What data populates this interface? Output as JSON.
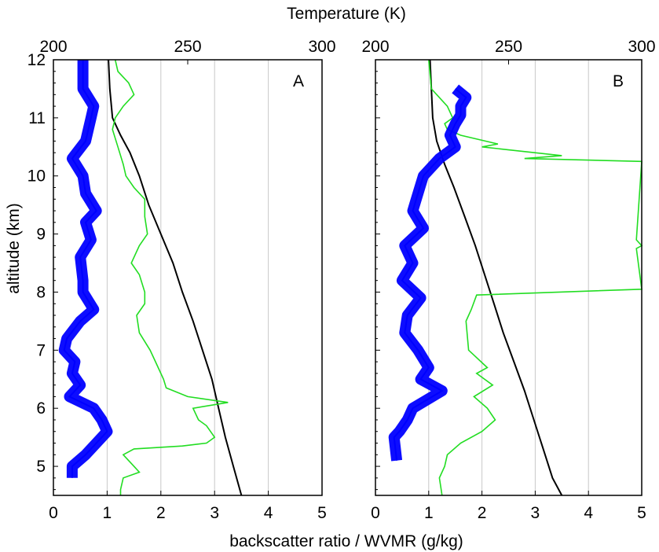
{
  "figure": {
    "top_axis_label": "Temperature (K)",
    "bottom_axis_label": "backscatter ratio / WVMR (g/kg)",
    "y_axis_label": "altitude (km)"
  },
  "chart_data": [
    {
      "type": "line",
      "panel": "A",
      "panel_label": "A",
      "xlim": [
        0,
        5
      ],
      "x2lim": [
        200,
        300
      ],
      "ylim": [
        4.5,
        12
      ],
      "xticks": [
        "0",
        "1",
        "2",
        "3",
        "4",
        "5"
      ],
      "x2ticks": [
        "200",
        "250",
        "300"
      ],
      "yticks": [
        "5",
        "6",
        "7",
        "8",
        "9",
        "10",
        "11",
        "12"
      ],
      "grid": "vertical",
      "series": [
        {
          "kind": "temperature",
          "axis": "top",
          "color": "#000000",
          "points": [
            [
              220.5,
              12.0
            ],
            [
              221.0,
              11.5
            ],
            [
              222.0,
              11.0
            ],
            [
              225.0,
              10.7
            ],
            [
              228.5,
              10.4
            ],
            [
              232.0,
              10.0
            ],
            [
              235.5,
              9.5
            ],
            [
              240.0,
              9.0
            ],
            [
              244.5,
              8.5
            ],
            [
              248.0,
              8.0
            ],
            [
              252.0,
              7.5
            ],
            [
              255.5,
              7.0
            ],
            [
              259.0,
              6.5
            ],
            [
              261.5,
              6.0
            ],
            [
              264.0,
              5.5
            ],
            [
              267.0,
              5.0
            ],
            [
              270.0,
              4.5
            ]
          ]
        },
        {
          "kind": "wvmr",
          "axis": "bottom",
          "color": "#22dd22",
          "points": [
            [
              1.15,
              12.0
            ],
            [
              1.2,
              11.8
            ],
            [
              1.4,
              11.6
            ],
            [
              1.5,
              11.4
            ],
            [
              1.3,
              11.2
            ],
            [
              1.15,
              11.0
            ],
            [
              1.1,
              10.8
            ],
            [
              1.2,
              10.5
            ],
            [
              1.3,
              10.2
            ],
            [
              1.35,
              10.0
            ],
            [
              1.5,
              9.8
            ],
            [
              1.7,
              9.6
            ],
            [
              1.7,
              9.3
            ],
            [
              1.75,
              9.0
            ],
            [
              1.6,
              8.8
            ],
            [
              1.45,
              8.5
            ],
            [
              1.6,
              8.3
            ],
            [
              1.7,
              8.0
            ],
            [
              1.7,
              7.8
            ],
            [
              1.55,
              7.6
            ],
            [
              1.6,
              7.3
            ],
            [
              1.8,
              7.0
            ],
            [
              1.9,
              6.8
            ],
            [
              2.05,
              6.5
            ],
            [
              2.1,
              6.35
            ],
            [
              2.5,
              6.2
            ],
            [
              3.25,
              6.1
            ],
            [
              2.6,
              6.0
            ],
            [
              2.7,
              5.8
            ],
            [
              2.85,
              5.7
            ],
            [
              3.0,
              5.5
            ],
            [
              2.85,
              5.4
            ],
            [
              2.4,
              5.35
            ],
            [
              1.5,
              5.3
            ],
            [
              1.3,
              5.2
            ],
            [
              1.5,
              5.0
            ],
            [
              1.6,
              4.9
            ],
            [
              1.3,
              4.8
            ],
            [
              1.25,
              4.6
            ],
            [
              1.25,
              4.5
            ]
          ]
        },
        {
          "kind": "backscatter",
          "axis": "bottom",
          "color": "#0000ff",
          "points": [
            [
              0.55,
              12.0
            ],
            [
              0.55,
              11.5
            ],
            [
              0.75,
              11.2
            ],
            [
              0.7,
              11.0
            ],
            [
              0.6,
              10.6
            ],
            [
              0.35,
              10.3
            ],
            [
              0.55,
              10.0
            ],
            [
              0.6,
              9.7
            ],
            [
              0.8,
              9.4
            ],
            [
              0.6,
              9.2
            ],
            [
              0.7,
              8.9
            ],
            [
              0.5,
              8.6
            ],
            [
              0.55,
              8.2
            ],
            [
              0.55,
              8.0
            ],
            [
              0.75,
              7.7
            ],
            [
              0.5,
              7.5
            ],
            [
              0.25,
              7.2
            ],
            [
              0.2,
              7.0
            ],
            [
              0.4,
              6.8
            ],
            [
              0.35,
              6.6
            ],
            [
              0.5,
              6.4
            ],
            [
              0.3,
              6.2
            ],
            [
              0.75,
              6.0
            ],
            [
              0.9,
              5.8
            ],
            [
              1.0,
              5.6
            ],
            [
              0.8,
              5.4
            ],
            [
              0.6,
              5.2
            ],
            [
              0.35,
              5.0
            ],
            [
              0.35,
              4.8
            ]
          ]
        }
      ]
    },
    {
      "type": "line",
      "panel": "B",
      "panel_label": "B",
      "xlim": [
        0,
        5
      ],
      "x2lim": [
        200,
        300
      ],
      "ylim": [
        4.5,
        12
      ],
      "xticks": [
        "0",
        "1",
        "2",
        "3",
        "4",
        "5"
      ],
      "x2ticks": [
        "200",
        "250",
        "300"
      ],
      "yticks": [],
      "grid": "vertical",
      "series": [
        {
          "kind": "temperature",
          "axis": "top",
          "color": "#000000",
          "points": [
            [
              220.5,
              12.0
            ],
            [
              221.0,
              11.5
            ],
            [
              221.5,
              11.0
            ],
            [
              223.0,
              10.6
            ],
            [
              226.0,
              10.2
            ],
            [
              229.5,
              9.8
            ],
            [
              233.5,
              9.3
            ],
            [
              237.5,
              8.8
            ],
            [
              241.0,
              8.3
            ],
            [
              244.5,
              7.8
            ],
            [
              248.0,
              7.3
            ],
            [
              252.0,
              6.8
            ],
            [
              256.0,
              6.3
            ],
            [
              259.5,
              5.8
            ],
            [
              263.0,
              5.3
            ],
            [
              266.5,
              4.8
            ],
            [
              270.0,
              4.5
            ]
          ]
        },
        {
          "kind": "wvmr",
          "axis": "bottom",
          "color": "#22dd22",
          "points": [
            [
              1.0,
              12.0
            ],
            [
              1.05,
              11.5
            ],
            [
              1.35,
              11.2
            ],
            [
              1.45,
              11.0
            ],
            [
              1.3,
              10.9
            ],
            [
              1.35,
              10.8
            ],
            [
              1.6,
              10.7
            ],
            [
              2.3,
              10.55
            ],
            [
              2.0,
              10.5
            ],
            [
              3.5,
              10.35
            ],
            [
              2.8,
              10.3
            ],
            [
              5.0,
              10.25
            ],
            [
              4.9,
              8.9
            ],
            [
              5.0,
              8.8
            ],
            [
              4.9,
              8.75
            ],
            [
              5.0,
              8.05
            ],
            [
              1.9,
              7.95
            ],
            [
              1.8,
              7.7
            ],
            [
              1.7,
              7.5
            ],
            [
              1.75,
              7.0
            ],
            [
              2.1,
              6.7
            ],
            [
              1.9,
              6.6
            ],
            [
              2.2,
              6.4
            ],
            [
              1.85,
              6.2
            ],
            [
              2.1,
              6.0
            ],
            [
              2.25,
              5.8
            ],
            [
              2.0,
              5.6
            ],
            [
              1.6,
              5.4
            ],
            [
              1.35,
              5.2
            ],
            [
              1.3,
              5.0
            ],
            [
              1.2,
              4.8
            ],
            [
              1.25,
              4.5
            ]
          ]
        },
        {
          "kind": "backscatter",
          "axis": "bottom",
          "color": "#0000ff",
          "points": [
            [
              1.5,
              11.5
            ],
            [
              1.7,
              11.35
            ],
            [
              1.6,
              11.2
            ],
            [
              1.6,
              11.05
            ],
            [
              1.5,
              10.9
            ],
            [
              1.4,
              10.7
            ],
            [
              1.5,
              10.5
            ],
            [
              1.2,
              10.3
            ],
            [
              0.9,
              10.0
            ],
            [
              0.8,
              9.7
            ],
            [
              0.7,
              9.4
            ],
            [
              0.9,
              9.1
            ],
            [
              0.55,
              8.8
            ],
            [
              0.7,
              8.5
            ],
            [
              0.5,
              8.2
            ],
            [
              0.85,
              7.9
            ],
            [
              0.6,
              7.6
            ],
            [
              0.55,
              7.3
            ],
            [
              0.8,
              7.0
            ],
            [
              1.0,
              6.7
            ],
            [
              0.85,
              6.5
            ],
            [
              1.25,
              6.3
            ],
            [
              0.7,
              6.0
            ],
            [
              0.6,
              5.8
            ],
            [
              0.45,
              5.6
            ],
            [
              0.35,
              5.5
            ],
            [
              0.4,
              5.1
            ]
          ]
        }
      ]
    }
  ]
}
